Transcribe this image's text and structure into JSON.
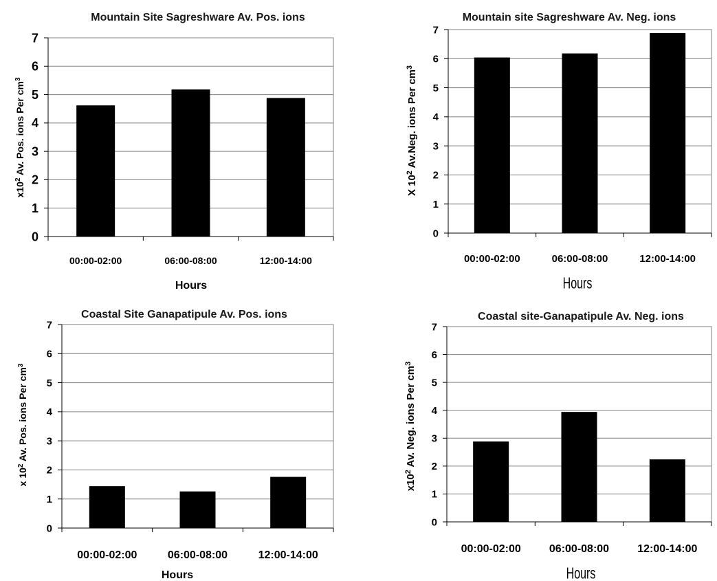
{
  "chart_data": [
    {
      "type": "bar",
      "title": "Mountain  Site Sagreshware Av. Pos. ions",
      "ylabel": "x10^2 Av. Pos. ions Per cm^3",
      "ylabel_prefix": "x10",
      "ylabel_mid": " Av. Pos. ions Per cm",
      "xlabel": "Hours",
      "categories": [
        "00:00-02:00",
        "06:00-08:00",
        "12:00-14:00"
      ],
      "values": [
        4.62,
        5.18,
        4.88
      ],
      "ylim": [
        0,
        7
      ],
      "yticks": [
        "0",
        "1",
        "2",
        "3",
        "4",
        "5",
        "6",
        "7"
      ],
      "grid": true
    },
    {
      "type": "bar",
      "title": "Mountain site Sagreshware Av. Neg. ions",
      "ylabel": "X 10^2 Av.Neg. ions Per cm^3",
      "ylabel_prefix": "X 10",
      "ylabel_mid": " Av.Neg. ions Per cm",
      "xlabel": "Hours",
      "categories": [
        "00:00-02:00",
        "06:00-08:00",
        "12:00-14:00"
      ],
      "values": [
        6.04,
        6.18,
        6.88
      ],
      "ylim": [
        0,
        7
      ],
      "yticks": [
        "0",
        "1",
        "2",
        "3",
        "4",
        "5",
        "6",
        "7"
      ],
      "grid": true
    },
    {
      "type": "bar",
      "title": "Coastal Site Ganapatipule Av. Pos. ions",
      "ylabel": "x 10^2 Av. Pos. ions Per cm^3",
      "ylabel_prefix": "x 10",
      "ylabel_mid": " Av. Pos. ions Per cm",
      "xlabel": "Hours",
      "categories": [
        "00:00-02:00",
        "06:00-08:00",
        "12:00-14:00"
      ],
      "values": [
        1.44,
        1.26,
        1.76
      ],
      "ylim": [
        0,
        7
      ],
      "yticks": [
        "0",
        "1",
        "2",
        "3",
        "4",
        "5",
        "6",
        "7"
      ],
      "grid": true
    },
    {
      "type": "bar",
      "title": "Coastal site-Ganapatipule Av. Neg. ions",
      "ylabel": "x10^2 Av. Neg. ions Per cm^3",
      "ylabel_prefix": "x10",
      "ylabel_mid": " Av. Neg. ions Per cm",
      "xlabel": "Hours",
      "categories": [
        "00:00-02:00",
        "06:00-08:00",
        "12:00-14:00"
      ],
      "values": [
        2.88,
        3.94,
        2.24
      ],
      "ylim": [
        0,
        7
      ],
      "yticks": [
        "0",
        "1",
        "2",
        "3",
        "4",
        "5",
        "6",
        "7"
      ],
      "grid": true
    }
  ],
  "exponents": {
    "squared": "2",
    "cubed": "3"
  },
  "colors": {
    "bar": "#000000",
    "grid": "#808080",
    "text": "#000000"
  }
}
